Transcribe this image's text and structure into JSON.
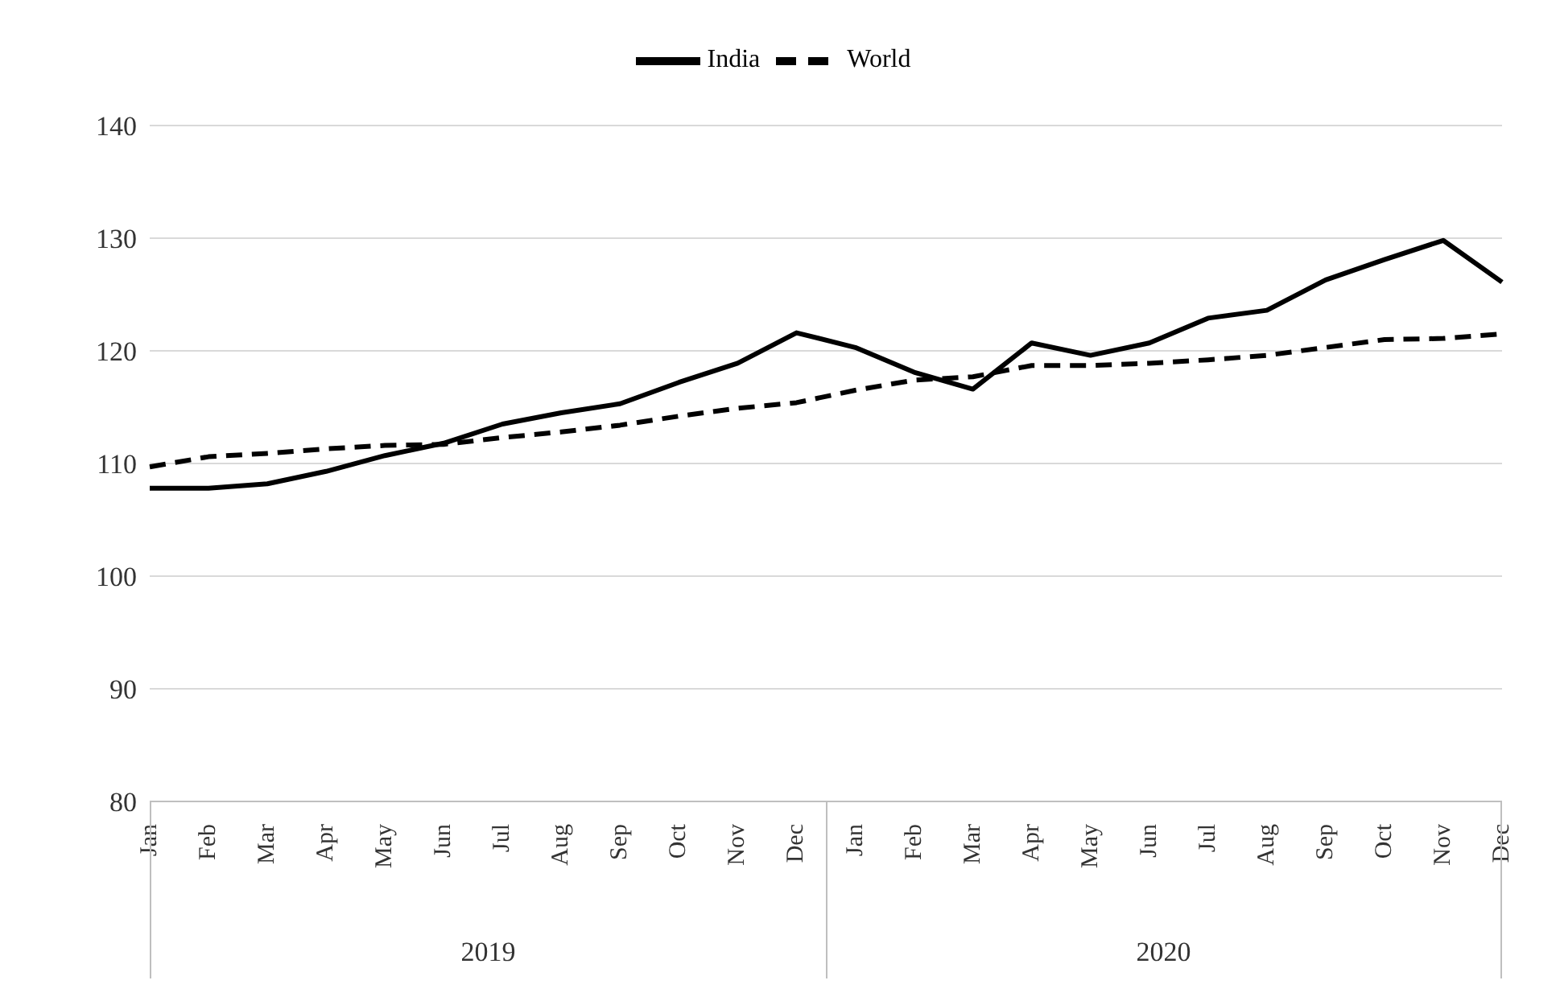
{
  "chart_data": {
    "type": "line",
    "categories": [
      "Jan",
      "Feb",
      "Mar",
      "Apr",
      "May",
      "Jun",
      "Jul",
      "Aug",
      "Sep",
      "Oct",
      "Nov",
      "Dec",
      "Jan",
      "Feb",
      "Mar",
      "Apr",
      "May",
      "Jun",
      "Jul",
      "Aug",
      "Sep",
      "Oct",
      "Nov",
      "Dec"
    ],
    "series": [
      {
        "name": "India",
        "color": "#000000",
        "line_style": "solid",
        "values": [
          107.8,
          107.8,
          108.2,
          109.3,
          110.7,
          111.8,
          113.5,
          114.5,
          115.3,
          117.2,
          118.9,
          121.6,
          120.3,
          118.1,
          116.6,
          120.7,
          119.6,
          120.7,
          122.9,
          123.6,
          126.3,
          128.1,
          129.8,
          126.1
        ]
      },
      {
        "name": "World",
        "color": "#000000",
        "line_style": "dashed",
        "values": [
          109.7,
          110.6,
          110.9,
          111.3,
          111.6,
          111.7,
          112.3,
          112.8,
          113.4,
          114.2,
          114.9,
          115.4,
          116.5,
          117.4,
          117.7,
          118.7,
          118.7,
          118.9,
          119.2,
          119.6,
          120.3,
          121,
          121.1,
          121.5
        ]
      }
    ],
    "ylim": [
      80,
      140
    ],
    "yticks": [
      80,
      90,
      100,
      110,
      120,
      130,
      140
    ],
    "grid": "y",
    "legend": "top",
    "marker": "none",
    "annotations": [
      "2019",
      "2020"
    ]
  }
}
